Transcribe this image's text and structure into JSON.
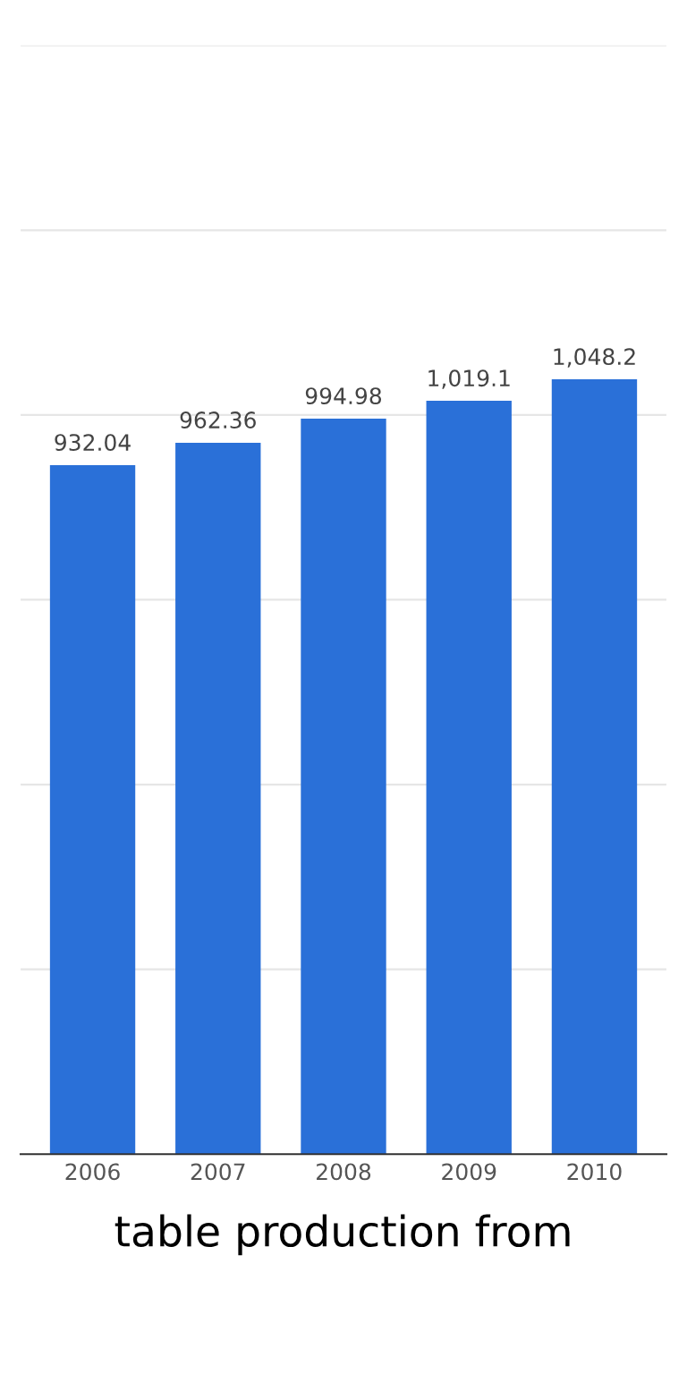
{
  "chart_data": {
    "type": "bar",
    "xlabel": "table production from",
    "categories": [
      "2006",
      "2007",
      "2008",
      "2009",
      "2010"
    ],
    "values": [
      932.04,
      962.36,
      994.98,
      1019.1,
      1048.2
    ],
    "value_labels": [
      "932.04",
      "962.36",
      "994.98",
      "1,019.1",
      "1,048.2"
    ],
    "color": "#2a70d8",
    "ylim": [
      0,
      1500
    ],
    "yticks": [
      0,
      250,
      500,
      750,
      1000,
      1250,
      1500
    ],
    "grid": "y",
    "tick_labels": "x"
  }
}
